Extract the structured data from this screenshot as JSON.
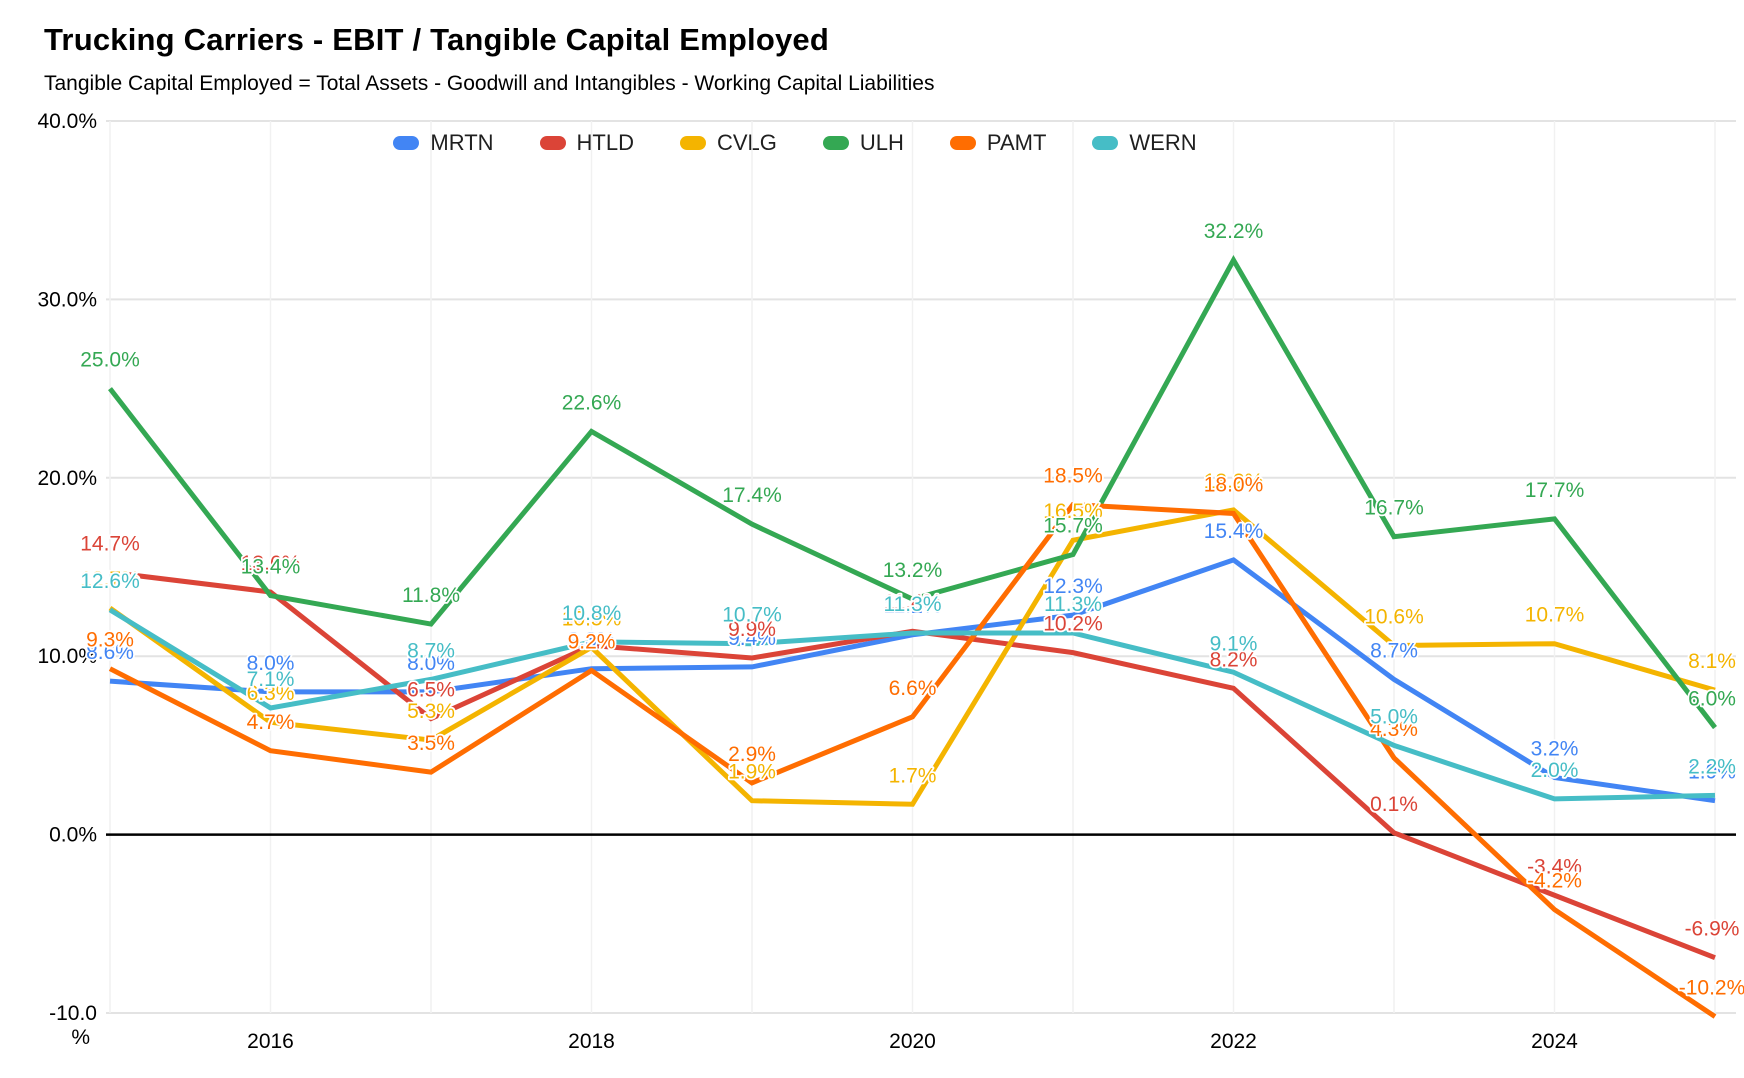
{
  "title": "Trucking Carriers - EBIT / Tangible Capital Employed",
  "subtitle": "Tangible Capital Employed = Total Assets - Goodwill and Intangibles - Working Capital Liabilities",
  "chart_data": {
    "type": "line",
    "x": [
      2015,
      2016,
      2017,
      2018,
      2019,
      2020,
      2021,
      2022,
      2023,
      2024,
      2025
    ],
    "x_ticks": [
      2016,
      2018,
      2020,
      2022,
      2024
    ],
    "x_tick_labels": [
      "2016",
      "2018",
      "2020",
      "2022",
      "2024"
    ],
    "y_ticks": [
      40,
      30,
      20,
      10,
      0,
      -10
    ],
    "y_tick_labels": [
      "40.0%",
      "30.0%",
      "20.0%",
      "10.0%",
      "0.0%",
      "-10.0%"
    ],
    "ylim": [
      -10,
      40
    ],
    "grid": true,
    "legend_position": "top",
    "gridline_color": "#e3e3e3",
    "vertical_gridline_color": "#f1f1f1",
    "zero_line_color": "#000000",
    "data_labels": true,
    "label_suffix": "%",
    "series": [
      {
        "name": "MRTN",
        "color": "#4285F4",
        "values": [
          8.6,
          8.0,
          8.0,
          9.3,
          9.4,
          11.2,
          12.3,
          15.4,
          8.7,
          3.2,
          1.9
        ]
      },
      {
        "name": "HTLD",
        "color": "#DB4437",
        "values": [
          14.7,
          13.6,
          6.5,
          10.6,
          9.9,
          11.4,
          10.2,
          8.2,
          0.1,
          -3.4,
          -6.9
        ]
      },
      {
        "name": "CVLG",
        "color": "#F4B400",
        "values": [
          12.7,
          6.3,
          5.3,
          10.5,
          1.9,
          1.7,
          16.5,
          18.2,
          10.6,
          10.7,
          8.1
        ]
      },
      {
        "name": "ULH",
        "color": "#34A853",
        "values": [
          25.0,
          13.4,
          11.8,
          22.6,
          17.4,
          13.2,
          15.7,
          32.2,
          16.7,
          17.7,
          6.0
        ]
      },
      {
        "name": "PAMT",
        "color": "#FF6D01",
        "values": [
          9.3,
          4.7,
          3.5,
          9.2,
          2.9,
          6.6,
          18.5,
          18.0,
          4.3,
          -4.2,
          -10.2
        ]
      },
      {
        "name": "WERN",
        "color": "#46BDC6",
        "values": [
          12.6,
          7.1,
          8.7,
          10.8,
          10.7,
          11.3,
          11.3,
          9.1,
          5.0,
          2.0,
          2.2
        ]
      }
    ]
  }
}
